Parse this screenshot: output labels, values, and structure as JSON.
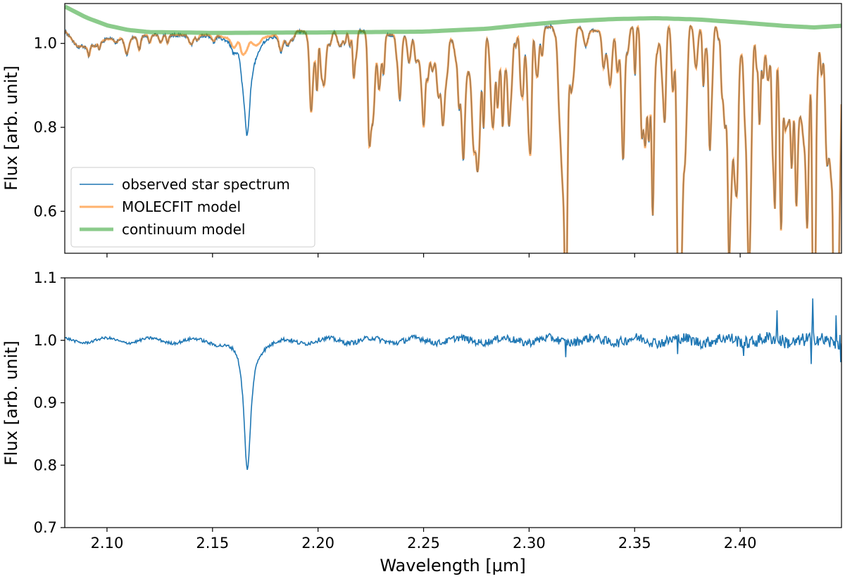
{
  "chart_data": [
    {
      "type": "line",
      "panel": "top",
      "title": "",
      "xlabel": "",
      "ylabel": "Flux [arb. unit]",
      "xlim": [
        2.08,
        2.448
      ],
      "ylim": [
        0.5,
        1.095
      ],
      "xticks": [
        2.1,
        2.15,
        2.2,
        2.25,
        2.3,
        2.35,
        2.4
      ],
      "xtick_labels_visible": false,
      "yticks": [
        0.6,
        0.8,
        1.0
      ],
      "ytick_labels": [
        "0.6",
        "0.8",
        "1.0"
      ],
      "grid": false,
      "legend_position": "lower-left",
      "series": [
        {
          "name": "observed star spectrum",
          "color": "#1f77b4",
          "baseline": [
            [
              2.08,
              1.03
            ],
            [
              2.085,
              1.0
            ],
            [
              2.09,
              0.99
            ],
            [
              2.1,
              1.01
            ],
            [
              2.12,
              1.02
            ],
            [
              2.14,
              1.02
            ],
            [
              2.15,
              1.02
            ],
            [
              2.16,
              1.01
            ],
            [
              2.175,
              1.015
            ],
            [
              2.185,
              1.025
            ],
            [
              2.19,
              1.03
            ],
            [
              2.2,
              1.025
            ],
            [
              2.21,
              1.035
            ],
            [
              2.22,
              1.03
            ],
            [
              2.23,
              1.02
            ],
            [
              2.24,
              1.02
            ],
            [
              2.25,
              1.015
            ],
            [
              2.26,
              1.01
            ],
            [
              2.27,
              1.01
            ],
            [
              2.28,
              1.02
            ],
            [
              2.29,
              1.02
            ],
            [
              2.3,
              1.03
            ],
            [
              2.31,
              1.04
            ],
            [
              2.315,
              1.05
            ],
            [
              2.33,
              1.03
            ],
            [
              2.34,
              1.03
            ],
            [
              2.35,
              1.04
            ],
            [
              2.36,
              1.05
            ],
            [
              2.37,
              1.05
            ],
            [
              2.38,
              1.04
            ],
            [
              2.39,
              1.04
            ],
            [
              2.4,
              1.03
            ],
            [
              2.41,
              1.035
            ],
            [
              2.42,
              1.02
            ],
            [
              2.43,
              1.03
            ],
            [
              2.44,
              1.04
            ],
            [
              2.448,
              1.04
            ]
          ],
          "deep_lines": [
            [
              2.1665,
              0.8,
              0.0018
            ],
            [
              2.1995,
              0.89,
              0.0005
            ],
            [
              2.2785,
              0.845,
              0.0005
            ],
            [
              2.2875,
              0.86,
              0.0005
            ],
            [
              2.3175,
              0.7,
              0.0006
            ],
            [
              2.3585,
              0.78,
              0.0005
            ],
            [
              2.3705,
              0.575,
              0.0006
            ],
            [
              2.3855,
              0.8,
              0.0005
            ],
            [
              2.3945,
              0.83,
              0.0005
            ],
            [
              2.4035,
              0.86,
              0.0005
            ],
            [
              2.4165,
              0.64,
              0.0005
            ],
            [
              2.4195,
              0.655,
              0.0005
            ],
            [
              2.4265,
              0.85,
              0.0005
            ],
            [
              2.4315,
              0.85,
              0.0005
            ],
            [
              2.4345,
              0.505,
              0.0004
            ],
            [
              2.4355,
              0.57,
              0.0004
            ],
            [
              2.4445,
              0.565,
              0.0004
            ],
            [
              2.4465,
              0.84,
              0.0004
            ]
          ],
          "noise_amplitude": 0.004
        },
        {
          "name": "MOLECFIT model",
          "color": "#ff7f0e",
          "opacity": 0.6,
          "note_shape": "follows observed spectrum except the 2.166 absorption line"
        },
        {
          "name": "continuum model",
          "color": "#2ca02c",
          "opacity": 0.55,
          "points": [
            [
              2.08,
              1.088
            ],
            [
              2.09,
              1.062
            ],
            [
              2.1,
              1.043
            ],
            [
              2.11,
              1.032
            ],
            [
              2.12,
              1.027
            ],
            [
              2.15,
              1.025
            ],
            [
              2.2,
              1.026
            ],
            [
              2.25,
              1.028
            ],
            [
              2.28,
              1.035
            ],
            [
              2.3,
              1.045
            ],
            [
              2.32,
              1.053
            ],
            [
              2.34,
              1.058
            ],
            [
              2.36,
              1.06
            ],
            [
              2.38,
              1.057
            ],
            [
              2.4,
              1.05
            ],
            [
              2.42,
              1.042
            ],
            [
              2.435,
              1.038
            ],
            [
              2.448,
              1.042
            ]
          ]
        }
      ],
      "legend": [
        "observed star spectrum",
        "MOLECFIT model",
        "continuum model"
      ]
    },
    {
      "type": "line",
      "panel": "bottom",
      "title": "",
      "xlabel": "Wavelength [μm]",
      "ylabel": "Flux [arb. unit]",
      "xlim": [
        2.08,
        2.448
      ],
      "ylim": [
        0.7,
        1.1
      ],
      "xticks": [
        2.1,
        2.15,
        2.2,
        2.25,
        2.3,
        2.35,
        2.4
      ],
      "xtick_labels": [
        "2.10",
        "2.15",
        "2.20",
        "2.25",
        "2.30",
        "2.35",
        "2.40"
      ],
      "yticks": [
        0.7,
        0.8,
        0.9,
        1.0,
        1.1
      ],
      "ytick_labels": [
        "0.7",
        "0.8",
        "0.9",
        "1.0",
        "1.1"
      ],
      "grid": false,
      "series": [
        {
          "name": "observed star spectrum",
          "color": "#1f77b4",
          "line_center": 2.1665,
          "line_depth": 0.21,
          "line_width": 0.002,
          "noise_amplitude_start": 0.002,
          "noise_amplitude_end": 0.012,
          "spikes": [
            [
              2.4175,
              1.048
            ],
            [
              2.4345,
              1.067
            ],
            [
              2.4335,
              0.962
            ],
            [
              2.4455,
              1.04
            ],
            [
              2.4475,
              0.965
            ],
            [
              2.3175,
              0.973
            ],
            [
              2.3705,
              0.978
            ],
            [
              2.4015,
              0.975
            ]
          ]
        }
      ]
    }
  ]
}
